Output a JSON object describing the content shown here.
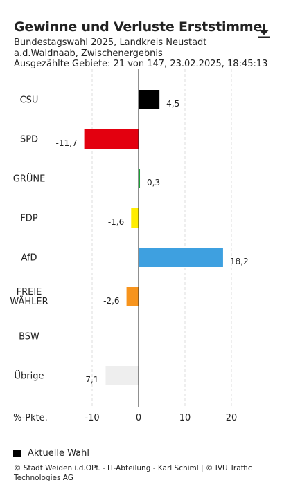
{
  "header": {
    "title": "Gewinne und Verluste Erststimme",
    "subtitle": "Bundestagswahl 2025, Landkreis Neustadt a.d.Waldnaab, Zwischenergebnis",
    "meta": "Ausgezählte Gebiete: 21 von 147, 23.02.2025, 18:45:13",
    "download_icon": "download-icon"
  },
  "chart_data": {
    "type": "bar",
    "orientation": "horizontal",
    "categories": [
      "CSU",
      "SPD",
      "GRÜNE",
      "FDP",
      "AfD",
      "FREIE WÄHLER",
      "BSW",
      "Übrige"
    ],
    "category_lines": [
      [
        "CSU"
      ],
      [
        "SPD"
      ],
      [
        "GRÜNE"
      ],
      [
        "FDP"
      ],
      [
        "AfD"
      ],
      [
        "FREIE",
        "WÄHLER"
      ],
      [
        "BSW"
      ],
      [
        "Übrige"
      ]
    ],
    "values": [
      4.5,
      -11.7,
      0.3,
      -1.6,
      18.2,
      -2.6,
      null,
      -7.1
    ],
    "labels": [
      "4,5",
      "-11,7",
      "0,3",
      "-1,6",
      "18,2",
      "-2,6",
      "",
      "-7,1"
    ],
    "colors": [
      "#000000",
      "#e3000f",
      "#1aa037",
      "#ffed00",
      "#3ea0e0",
      "#f7941d",
      "#7b2450",
      "#eeeeee"
    ],
    "xlim": [
      -12,
      21
    ],
    "xticks": [
      -10,
      0,
      10,
      20
    ],
    "xtick_labels": [
      "-10",
      "0",
      "10",
      "20"
    ],
    "axis_unit": "%-Pkte.",
    "grid": true,
    "legend_position": "bottom-left"
  },
  "legend": {
    "label": "Aktuelle Wahl",
    "color": "#000000"
  },
  "footer": {
    "text": "© Stadt Weiden i.d.OPf. - IT-Abteilung - Karl Schiml | © IVU Traffic Technologies AG"
  }
}
